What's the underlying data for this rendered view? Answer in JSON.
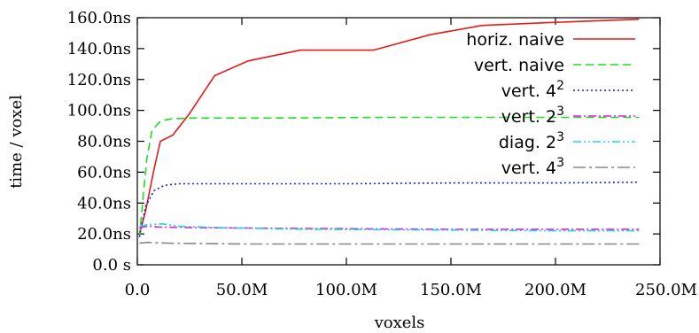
{
  "chart_data": {
    "type": "line",
    "xlabel": "voxels",
    "ylabel": "time / voxel",
    "xlim": [
      0,
      250000000
    ],
    "ylim": [
      0,
      160
    ],
    "x_ticks": [
      {
        "value": 0,
        "label": "0.0"
      },
      {
        "value": 50000000,
        "label": "50.0M"
      },
      {
        "value": 100000000,
        "label": "100.0M"
      },
      {
        "value": 150000000,
        "label": "150.0M"
      },
      {
        "value": 200000000,
        "label": "200.0M"
      },
      {
        "value": 250000000,
        "label": "250.0M"
      }
    ],
    "y_ticks": [
      {
        "value": 0,
        "label": "0.0 s"
      },
      {
        "value": 20,
        "label": "20.0ns"
      },
      {
        "value": 40,
        "label": "40.0ns"
      },
      {
        "value": 60,
        "label": "60.0ns"
      },
      {
        "value": 80,
        "label": "80.0ns"
      },
      {
        "value": 100,
        "label": "100.0ns"
      },
      {
        "value": 120,
        "label": "120.0ns"
      },
      {
        "value": 140,
        "label": "140.0ns"
      },
      {
        "value": 160,
        "label": "160.0ns"
      }
    ],
    "grid": false,
    "legend": "top-right",
    "series": [
      {
        "name": "horiz. naive",
        "base": "horiz. naive",
        "sup": "",
        "color": "#e41a1c",
        "dash": "solid",
        "points": [
          [
            1000000,
            20
          ],
          [
            4000000,
            35
          ],
          [
            8000000,
            62
          ],
          [
            11000000,
            80
          ],
          [
            17000000,
            84
          ],
          [
            25000000,
            98
          ],
          [
            37000000,
            122.5
          ],
          [
            53000000,
            132
          ],
          [
            78000000,
            139
          ],
          [
            113000000,
            139
          ],
          [
            140000000,
            149
          ],
          [
            165000000,
            155
          ],
          [
            200000000,
            157
          ],
          [
            240000000,
            159
          ]
        ]
      },
      {
        "name": "vert. naive",
        "base": "vert. naive",
        "sup": "",
        "color": "#22dd22",
        "dash": "dashed",
        "points": [
          [
            1000000,
            18
          ],
          [
            2500000,
            40
          ],
          [
            4500000,
            68
          ],
          [
            7000000,
            87
          ],
          [
            11000000,
            93
          ],
          [
            16000000,
            94.5
          ],
          [
            25000000,
            95
          ],
          [
            60000000,
            95
          ],
          [
            120000000,
            95.5
          ],
          [
            180000000,
            95.5
          ],
          [
            240000000,
            95.5
          ]
        ]
      },
      {
        "name": "vert. 4²",
        "base": "vert. 4",
        "sup": "2",
        "color": "#1a1adb",
        "dash": "dotted",
        "points": [
          [
            1000000,
            18
          ],
          [
            4000000,
            38
          ],
          [
            8000000,
            48
          ],
          [
            13000000,
            51.5
          ],
          [
            20000000,
            52.5
          ],
          [
            40000000,
            52.5
          ],
          [
            100000000,
            52.5
          ],
          [
            150000000,
            53
          ],
          [
            200000000,
            53
          ],
          [
            240000000,
            53.5
          ]
        ]
      },
      {
        "name": "vert. 2³",
        "base": "vert. 2",
        "sup": "3",
        "color": "#e21ee2",
        "dash": "dash-dot",
        "points": [
          [
            1000000,
            24
          ],
          [
            5000000,
            25
          ],
          [
            10000000,
            24.5
          ],
          [
            30000000,
            24
          ],
          [
            80000000,
            23.5
          ],
          [
            150000000,
            23
          ],
          [
            200000000,
            23
          ],
          [
            240000000,
            23
          ]
        ]
      },
      {
        "name": "diag. 2³",
        "base": "diag. 2",
        "sup": "3",
        "color": "#19d8e0",
        "dash": "dash-dot-dot",
        "points": [
          [
            1000000,
            25
          ],
          [
            5000000,
            26
          ],
          [
            12000000,
            26.5
          ],
          [
            20000000,
            25
          ],
          [
            40000000,
            24
          ],
          [
            80000000,
            23
          ],
          [
            150000000,
            22.5
          ],
          [
            200000000,
            22
          ],
          [
            240000000,
            22
          ]
        ]
      },
      {
        "name": "vert. 4³",
        "base": "vert. 4",
        "sup": "3",
        "color": "#888888",
        "dash": "long-dash-dot",
        "points": [
          [
            1000000,
            14
          ],
          [
            5000000,
            14.5
          ],
          [
            15000000,
            14
          ],
          [
            50000000,
            13.5
          ],
          [
            100000000,
            13.5
          ],
          [
            150000000,
            13.5
          ],
          [
            200000000,
            13.5
          ],
          [
            240000000,
            13.5
          ]
        ]
      }
    ]
  }
}
